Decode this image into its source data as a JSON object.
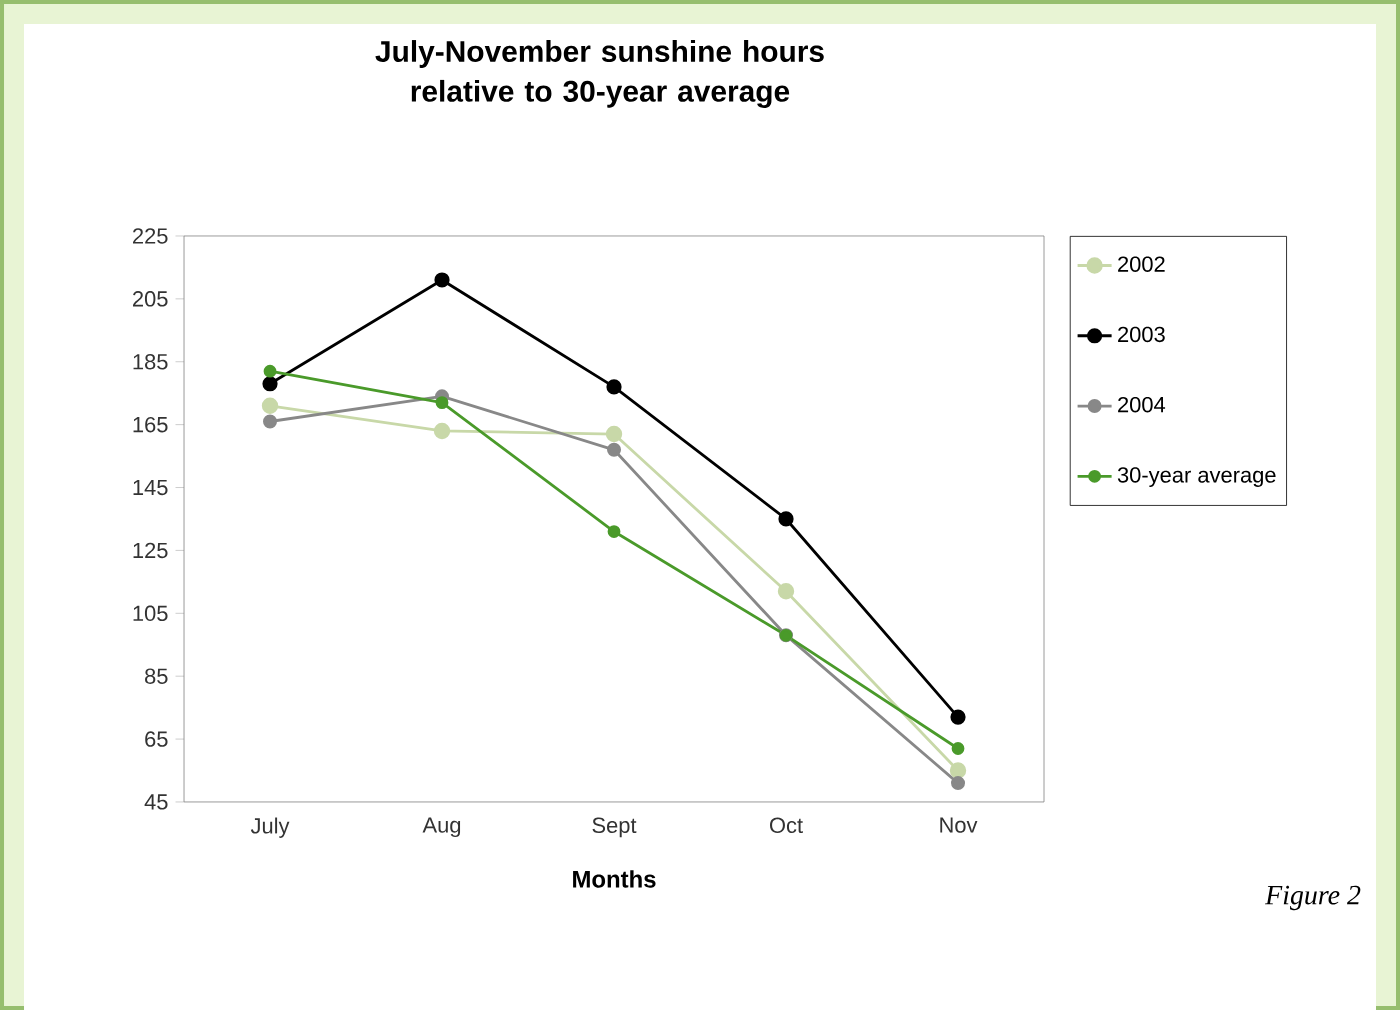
{
  "chart_data": {
    "type": "line",
    "title": "July-November sunshine hours relative to 30-year average",
    "xlabel": "Months",
    "categories": [
      "July",
      "Aug",
      "Sept",
      "Oct",
      "Nov"
    ],
    "series": [
      {
        "name": "2002",
        "color": "#c8d8a8",
        "values": [
          171,
          163,
          162,
          112,
          55
        ]
      },
      {
        "name": "2003",
        "color": "#000000",
        "values": [
          178,
          211,
          177,
          135,
          72
        ]
      },
      {
        "name": "2004",
        "color": "#888888",
        "values": [
          166,
          174,
          157,
          98,
          51
        ]
      },
      {
        "name": "30-year average",
        "color": "#4a9a2a",
        "values": [
          182,
          172,
          131,
          98,
          62
        ]
      }
    ],
    "ylim": [
      45,
      225
    ],
    "yticks": [
      45,
      65,
      85,
      105,
      125,
      145,
      165,
      185,
      205,
      225
    ],
    "grid": false,
    "legend": "right",
    "marker": "circle",
    "line_style": "solid",
    "annotations": [
      "Figure 2"
    ]
  }
}
